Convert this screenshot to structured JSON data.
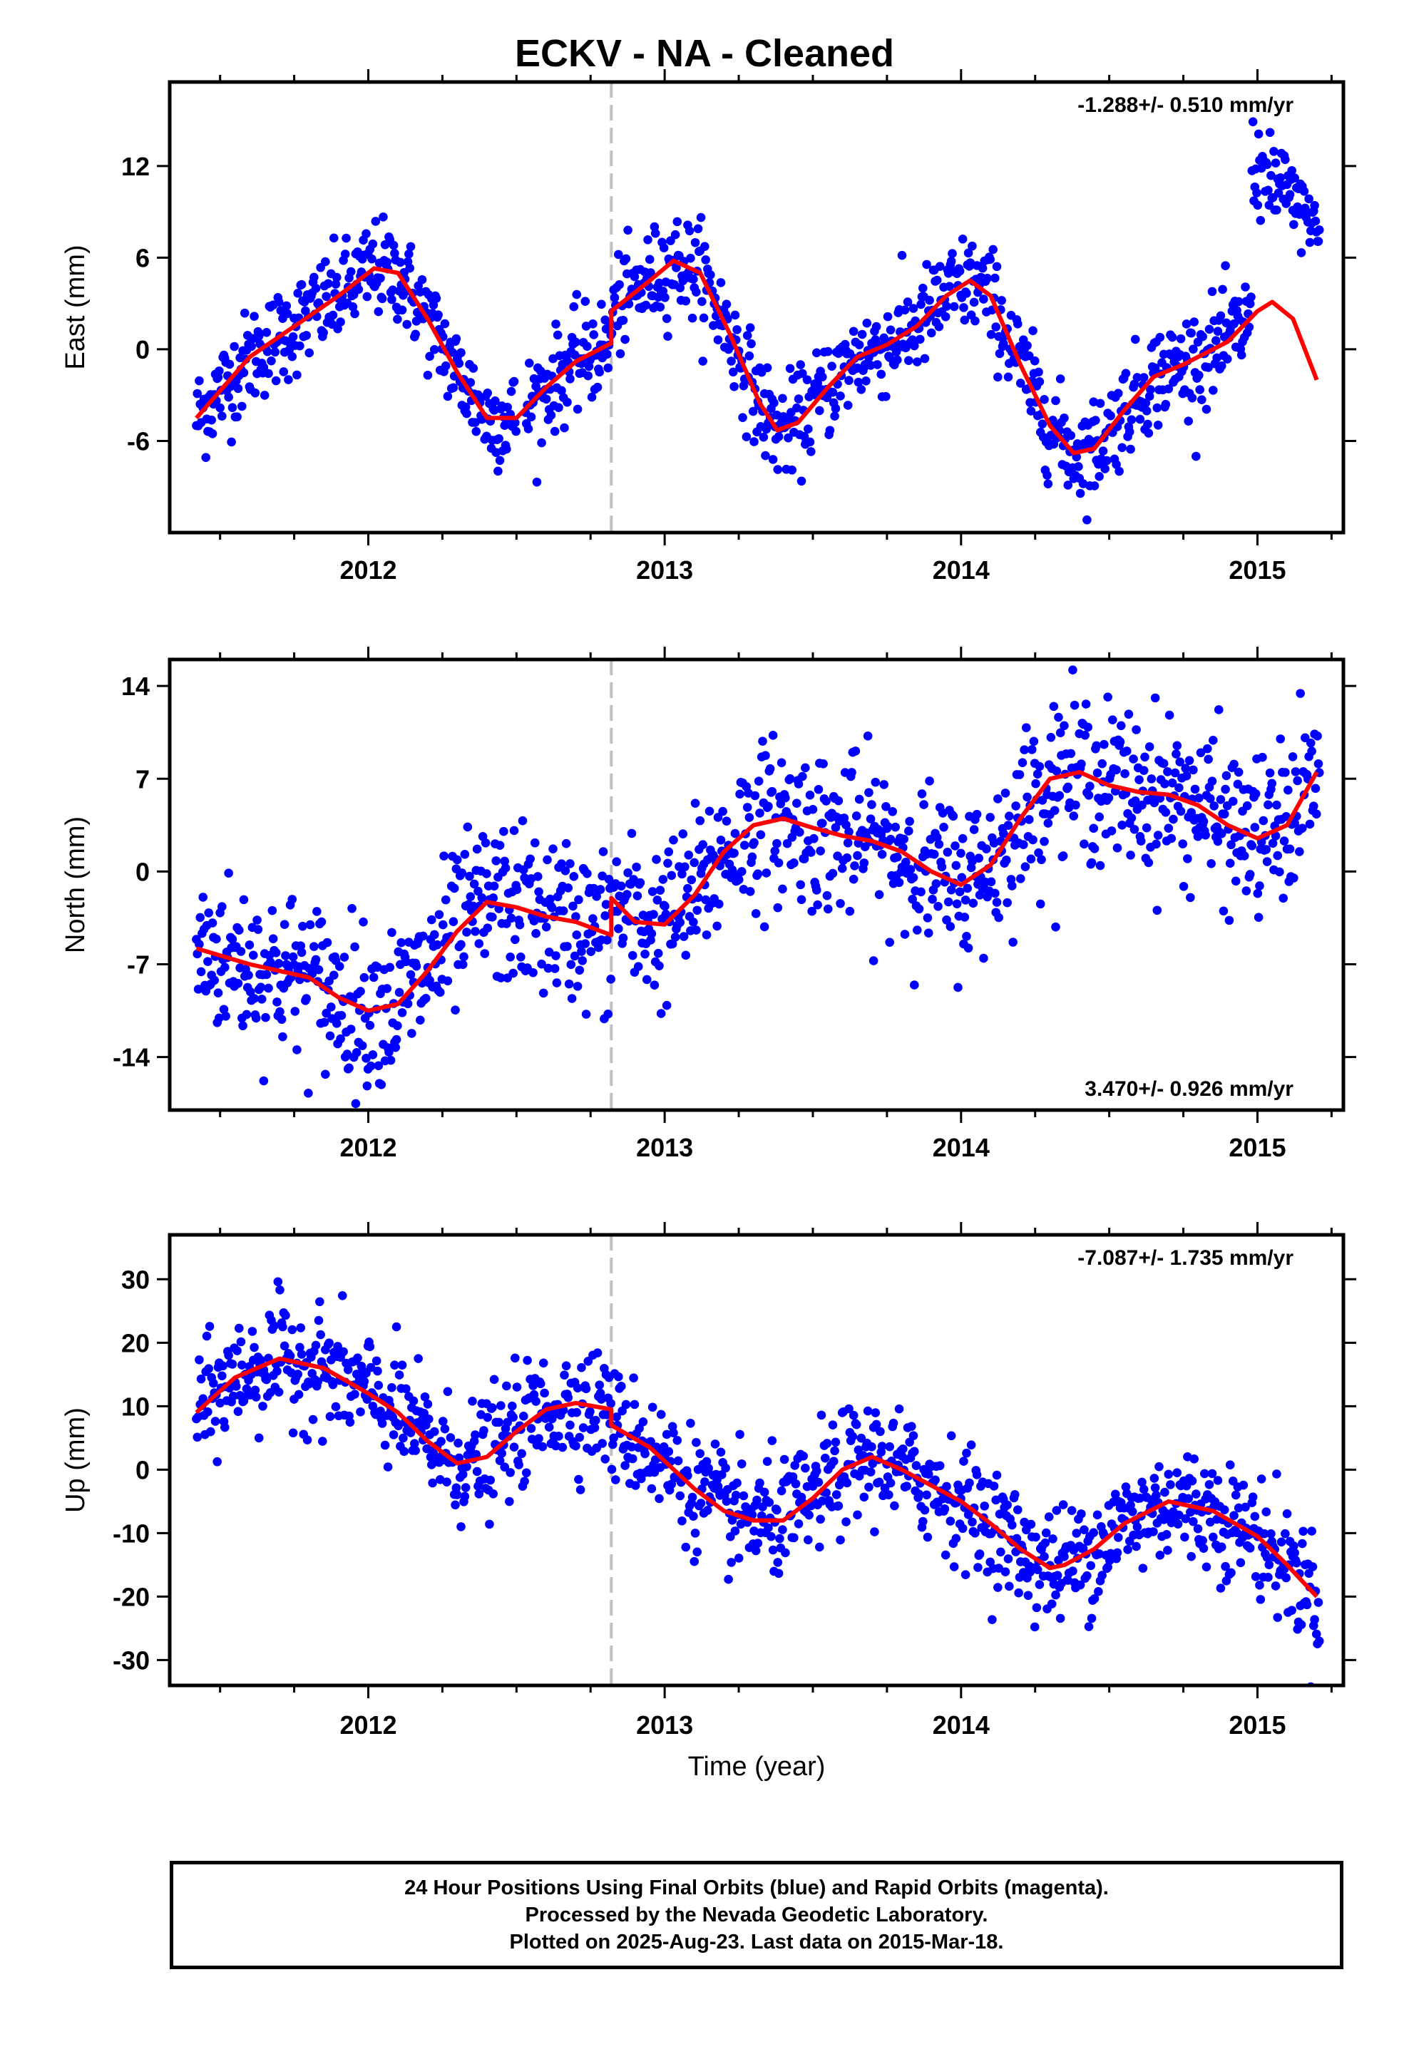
{
  "figure": {
    "title": "ECKV  - NA - Cleaned",
    "footer": [
      "24 Hour Positions Using Final Orbits (blue) and Rapid Orbits (magenta).",
      "Processed by the Nevada Geodetic Laboratory.",
      "Plotted on 2025-Aug-23. Last data on 2015-Mar-18."
    ],
    "xlabel": "Time (year)",
    "colors": {
      "data": "#0000ff",
      "model": "#ff0000",
      "break_line": "#c0c0c0",
      "frame": "#000000"
    }
  },
  "chart_data": [
    {
      "type": "scatter",
      "ylabel": "East (mm)",
      "rate_label": "-1.288+/- 0.510 mm/yr",
      "rate_position": "top-right",
      "xlim": [
        2011.33,
        2015.29
      ],
      "ylim": [
        -12.0,
        17.5
      ],
      "x_ticks": [
        2012,
        2013,
        2014,
        2015
      ],
      "y_ticks": [
        -6,
        0,
        6,
        12
      ],
      "equipment_break": 2012.82,
      "model": {
        "x": [
          2011.42,
          2011.6,
          2011.75,
          2011.9,
          2012.02,
          2012.1,
          2012.2,
          2012.3,
          2012.4,
          2012.5,
          2012.6,
          2012.7,
          2012.82,
          2012.82,
          2012.95,
          2013.03,
          2013.12,
          2013.22,
          2013.32,
          2013.38,
          2013.45,
          2013.55,
          2013.65,
          2013.75,
          2013.85,
          2013.95,
          2014.03,
          2014.1,
          2014.2,
          2014.3,
          2014.38,
          2014.45,
          2014.55,
          2014.65,
          2014.75,
          2014.9,
          2015.0,
          2015.05,
          2015.12,
          2015.2
        ],
        "y": [
          -4.5,
          -0.5,
          1.5,
          3.5,
          5.3,
          5.0,
          2.0,
          -1.5,
          -4.5,
          -4.5,
          -2.5,
          -0.8,
          0.4,
          2.5,
          4.5,
          5.8,
          5.0,
          1.0,
          -3.5,
          -5.3,
          -4.8,
          -2.5,
          -0.5,
          0.3,
          1.5,
          3.5,
          4.5,
          3.5,
          -1.0,
          -5.0,
          -6.8,
          -6.5,
          -4.0,
          -1.8,
          -1.0,
          0.5,
          2.5,
          3.1,
          2.0,
          -2.0
        ]
      }
    },
    {
      "type": "scatter",
      "ylabel": "North (mm)",
      "rate_label": "3.470+/- 0.926 mm/yr",
      "rate_position": "bottom-right",
      "xlim": [
        2011.33,
        2015.29
      ],
      "ylim": [
        -18.0,
        16.0
      ],
      "x_ticks": [
        2012,
        2013,
        2014,
        2015
      ],
      "y_ticks": [
        -14,
        -7,
        0,
        7,
        14
      ],
      "equipment_break": 2012.82,
      "model": {
        "x": [
          2011.42,
          2011.6,
          2011.8,
          2011.9,
          2012.0,
          2012.1,
          2012.2,
          2012.3,
          2012.4,
          2012.5,
          2012.6,
          2012.7,
          2012.82,
          2012.82,
          2012.9,
          2013.0,
          2013.1,
          2013.2,
          2013.3,
          2013.4,
          2013.5,
          2013.6,
          2013.7,
          2013.8,
          2013.9,
          2014.0,
          2014.1,
          2014.2,
          2014.3,
          2014.4,
          2014.5,
          2014.6,
          2014.7,
          2014.8,
          2014.9,
          2015.0,
          2015.1,
          2015.2
        ],
        "y": [
          -5.8,
          -7.0,
          -8.0,
          -9.5,
          -10.5,
          -10.0,
          -7.5,
          -4.5,
          -2.3,
          -2.7,
          -3.4,
          -3.8,
          -4.8,
          -2.0,
          -3.8,
          -4.0,
          -1.8,
          1.5,
          3.5,
          4.0,
          3.3,
          2.7,
          2.3,
          1.5,
          0.0,
          -1.0,
          0.5,
          4.0,
          7.0,
          7.5,
          6.5,
          6.0,
          5.8,
          5.0,
          3.5,
          2.5,
          3.5,
          7.5
        ]
      }
    },
    {
      "type": "scatter",
      "ylabel": "Up (mm)",
      "rate_label": "-7.087+/- 1.735 mm/yr",
      "rate_position": "top-right",
      "xlim": [
        2011.33,
        2015.29
      ],
      "ylim": [
        -34.0,
        37.0
      ],
      "x_ticks": [
        2012,
        2013,
        2014,
        2015
      ],
      "y_ticks": [
        -30,
        -20,
        -10,
        0,
        10,
        20,
        30
      ],
      "equipment_break": 2012.82,
      "model": {
        "x": [
          2011.42,
          2011.55,
          2011.7,
          2011.85,
          2012.0,
          2012.1,
          2012.2,
          2012.3,
          2012.4,
          2012.5,
          2012.6,
          2012.7,
          2012.82,
          2012.82,
          2012.95,
          2013.1,
          2013.2,
          2013.3,
          2013.4,
          2013.5,
          2013.6,
          2013.7,
          2013.8,
          2013.9,
          2014.0,
          2014.1,
          2014.2,
          2014.3,
          2014.35,
          2014.45,
          2014.55,
          2014.7,
          2014.85,
          2015.0,
          2015.1,
          2015.2
        ],
        "y": [
          9.0,
          14.5,
          17.5,
          16.0,
          12.0,
          9.0,
          4.5,
          1.0,
          2.0,
          6.0,
          9.5,
          10.5,
          9.5,
          7.0,
          3.5,
          -3.0,
          -6.5,
          -8.0,
          -8.0,
          -4.5,
          0.0,
          2.0,
          0.0,
          -2.5,
          -5.0,
          -8.5,
          -12.5,
          -15.5,
          -15.0,
          -12.5,
          -8.5,
          -5.0,
          -6.5,
          -10.5,
          -15.0,
          -20.0
        ]
      }
    }
  ]
}
